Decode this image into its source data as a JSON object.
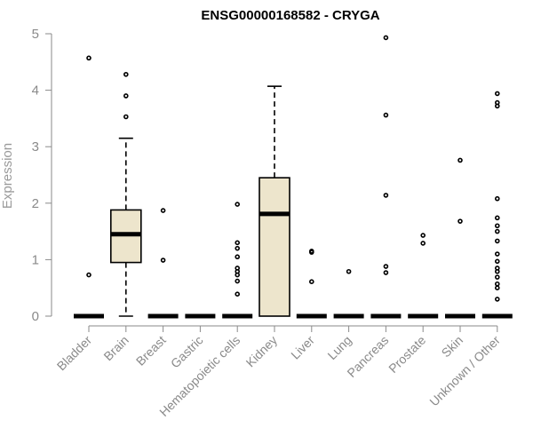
{
  "chart_data": {
    "type": "boxplot",
    "title": "ENSG00000168582 - CRYGA",
    "xlabel": "",
    "ylabel": "Expression",
    "ylim": [
      0,
      5
    ],
    "yticks": [
      "0",
      "1",
      "2",
      "3",
      "4",
      "5"
    ],
    "grid": false,
    "box_color": "#ede5cc",
    "categories": [
      "Bladder",
      "Brain",
      "Breast",
      "Gastric",
      "Hematopoietic cells",
      "Kidney",
      "Liver",
      "Lung",
      "Pancreas",
      "Prostate",
      "Skin",
      "Unknown / Other"
    ],
    "boxes": [
      {
        "category": "Bladder",
        "min": 0,
        "q1": 0,
        "median": 0,
        "q3": 0,
        "max": 0,
        "outliers": [
          0.73,
          4.57
        ]
      },
      {
        "category": "Brain",
        "min": 0,
        "q1": 0.95,
        "median": 1.45,
        "q3": 1.88,
        "max": 3.15,
        "outliers": [
          3.53,
          3.9,
          4.28
        ]
      },
      {
        "category": "Breast",
        "min": 0,
        "q1": 0,
        "median": 0,
        "q3": 0,
        "max": 0,
        "outliers": [
          0.99,
          1.87
        ]
      },
      {
        "category": "Gastric",
        "min": 0,
        "q1": 0,
        "median": 0,
        "q3": 0,
        "max": 0,
        "outliers": []
      },
      {
        "category": "Hematopoietic cells",
        "min": 0,
        "q1": 0,
        "median": 0,
        "q3": 0,
        "max": 0,
        "outliers": [
          0.39,
          0.62,
          0.73,
          0.79,
          0.85,
          1.05,
          1.2,
          1.3,
          1.98
        ]
      },
      {
        "category": "Kidney",
        "min": 0,
        "q1": 0,
        "median": 1.81,
        "q3": 2.45,
        "max": 4.07,
        "outliers": []
      },
      {
        "category": "Liver",
        "min": 0,
        "q1": 0,
        "median": 0,
        "q3": 0,
        "max": 0,
        "outliers": [
          0.61,
          1.13,
          1.15
        ]
      },
      {
        "category": "Lung",
        "min": 0,
        "q1": 0,
        "median": 0,
        "q3": 0,
        "max": 0,
        "outliers": [
          0.79
        ]
      },
      {
        "category": "Pancreas",
        "min": 0,
        "q1": 0,
        "median": 0,
        "q3": 0,
        "max": 0,
        "outliers": [
          0.77,
          0.88,
          2.14,
          3.56,
          4.93
        ]
      },
      {
        "category": "Prostate",
        "min": 0,
        "q1": 0,
        "median": 0,
        "q3": 0,
        "max": 0,
        "outliers": [
          1.29,
          1.43
        ]
      },
      {
        "category": "Skin",
        "min": 0,
        "q1": 0,
        "median": 0,
        "q3": 0,
        "max": 0,
        "outliers": [
          1.68,
          2.76
        ]
      },
      {
        "category": "Unknown / Other",
        "min": 0,
        "q1": 0,
        "median": 0,
        "q3": 0,
        "max": 0,
        "outliers": [
          0.3,
          0.5,
          0.57,
          0.69,
          0.79,
          0.85,
          0.97,
          1.1,
          1.33,
          1.5,
          1.6,
          1.74,
          2.08,
          3.72,
          3.78,
          3.94
        ]
      }
    ]
  }
}
